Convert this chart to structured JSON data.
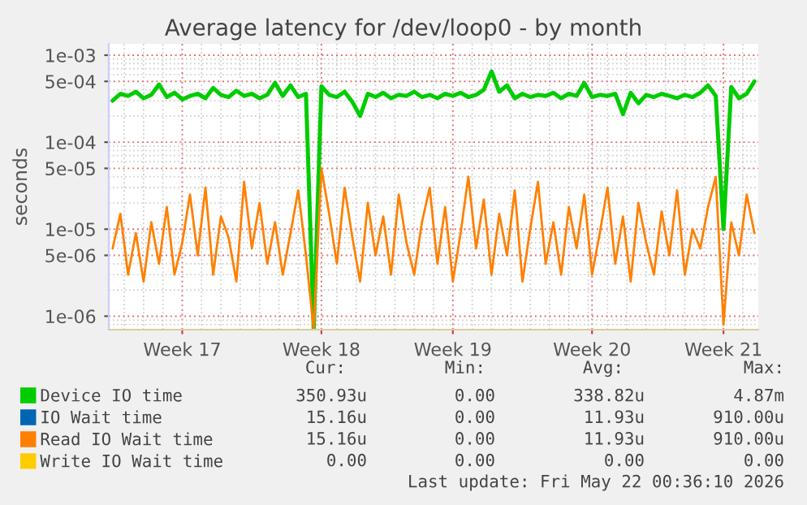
{
  "chart_data": {
    "type": "line",
    "title": "Average latency for /dev/loop0 - by month",
    "ylabel": "seconds",
    "log": "y",
    "grid": true,
    "legend": "bottom",
    "marker": "none",
    "line_style": "solid",
    "categories": [
      null,
      null,
      null,
      null,
      null,
      null,
      null,
      null,
      null,
      "Week 17",
      null,
      null,
      null,
      null,
      null,
      null,
      null,
      null,
      null,
      null,
      null,
      null,
      null,
      null,
      null,
      null,
      null,
      "Week 18",
      null,
      null,
      null,
      null,
      null,
      null,
      null,
      null,
      null,
      null,
      null,
      null,
      null,
      null,
      null,
      null,
      "Week 19",
      null,
      null,
      null,
      null,
      null,
      null,
      null,
      null,
      null,
      null,
      null,
      null,
      null,
      null,
      null,
      null,
      null,
      "Week 20",
      null,
      null,
      null,
      null,
      null,
      null,
      null,
      null,
      null,
      null,
      null,
      null,
      null,
      null,
      null,
      null,
      "Week 21",
      null,
      null,
      null,
      null
    ],
    "ylim": [
      7e-07,
      0.00135
    ],
    "yticks": [
      {
        "value": 1e-06,
        "label": "1e-06"
      },
      {
        "value": 5e-06,
        "label": "5e-06"
      },
      {
        "value": 1e-05,
        "label": "1e-05"
      },
      {
        "value": 5e-05,
        "label": "5e-05"
      },
      {
        "value": 0.0001,
        "label": "1e-04"
      },
      {
        "value": 0.0005,
        "label": "5e-04"
      },
      {
        "value": 0.001,
        "label": "1e-03"
      }
    ],
    "series": [
      {
        "name": "Device IO time",
        "color": "#00cc00",
        "values": [
          0.0003,
          0.00036,
          0.00034,
          0.00038,
          0.00032,
          0.00035,
          0.00046,
          0.00033,
          0.00037,
          0.00031,
          0.00034,
          0.00036,
          0.00032,
          0.00042,
          0.00035,
          0.00033,
          0.00039,
          0.00034,
          0.00036,
          0.00032,
          0.00035,
          0.00048,
          0.00034,
          0.00045,
          0.00033,
          0.00036,
          7e-07,
          0.00044,
          0.00035,
          0.00033,
          0.00038,
          0.00029,
          0.0002,
          0.00036,
          0.00033,
          0.00037,
          0.00032,
          0.00035,
          0.00034,
          0.00038,
          0.00033,
          0.00035,
          0.00032,
          0.00036,
          0.00034,
          0.00037,
          0.00033,
          0.00035,
          0.0004,
          0.00065,
          0.00038,
          0.00045,
          0.00032,
          0.00036,
          0.00033,
          0.00035,
          0.00034,
          0.00037,
          0.00032,
          0.00036,
          0.00034,
          0.00048,
          0.00033,
          0.00035,
          0.00034,
          0.00036,
          0.00021,
          0.00037,
          0.00028,
          0.00035,
          0.00033,
          0.00036,
          0.00034,
          0.00032,
          0.00035,
          0.00033,
          0.00037,
          0.00045,
          0.00034,
          1e-05,
          0.00043,
          0.00032,
          0.00036,
          0.0005
        ]
      },
      {
        "name": "IO Wait time",
        "color": "#0066b3",
        "values": [
          null,
          null,
          null,
          null,
          null,
          null,
          null,
          null,
          null,
          null,
          null,
          null,
          null,
          null,
          null,
          null,
          null,
          null,
          null,
          null,
          null,
          null,
          null,
          null,
          null,
          null,
          null,
          null,
          null,
          null,
          null,
          null,
          null,
          null,
          null,
          null,
          null,
          null,
          null,
          null,
          null,
          null,
          null,
          null,
          null,
          null,
          null,
          null,
          null,
          null,
          null,
          null,
          null,
          null,
          null,
          null,
          null,
          null,
          null,
          null,
          null,
          null,
          null,
          null,
          null,
          null,
          null,
          null,
          null,
          null,
          null,
          null,
          null,
          null,
          null,
          null,
          null,
          null,
          null,
          null,
          null,
          null,
          null,
          null
        ]
      },
      {
        "name": "Read IO Wait time",
        "color": "#ff8000",
        "values": [
          6e-06,
          1.5e-05,
          3e-06,
          9e-06,
          2.5e-06,
          1.2e-05,
          4e-06,
          1.8e-05,
          3e-06,
          7e-06,
          2.5e-05,
          5e-06,
          3e-05,
          3e-06,
          1.4e-05,
          8e-06,
          2.5e-06,
          3.5e-05,
          6e-06,
          2e-05,
          4e-06,
          1.2e-05,
          3e-06,
          9e-06,
          2.8e-05,
          5e-06,
          7e-07,
          5e-05,
          1.5e-05,
          4e-06,
          3e-05,
          8e-06,
          2.5e-06,
          2e-05,
          5e-06,
          1.4e-05,
          3e-06,
          2.5e-05,
          7e-06,
          3e-06,
          1.2e-05,
          3e-05,
          4e-06,
          1.8e-05,
          2.5e-06,
          9e-06,
          4e-05,
          6e-06,
          2.2e-05,
          3e-06,
          1.5e-05,
          5e-06,
          2.8e-05,
          2.5e-06,
          1e-05,
          3.5e-05,
          4e-06,
          1.2e-05,
          3e-06,
          1.8e-05,
          6e-06,
          2.5e-05,
          3e-06,
          9e-06,
          3e-05,
          4e-06,
          1.4e-05,
          2.5e-06,
          2e-05,
          7e-06,
          3e-06,
          1.6e-05,
          5e-06,
          2.8e-05,
          3e-06,
          1e-05,
          6e-06,
          1.8e-05,
          4e-05,
          8e-07,
          1.2e-05,
          5e-06,
          2.5e-05,
          9e-06
        ]
      },
      {
        "name": "Write IO Wait time",
        "color": "#ffcc00",
        "values": [
          null,
          null,
          null,
          null,
          null,
          null,
          null,
          null,
          null,
          null,
          null,
          null,
          null,
          null,
          null,
          null,
          null,
          null,
          null,
          null,
          null,
          null,
          null,
          null,
          null,
          null,
          null,
          null,
          null,
          null,
          null,
          null,
          null,
          null,
          null,
          null,
          null,
          null,
          null,
          null,
          null,
          null,
          null,
          null,
          null,
          null,
          null,
          null,
          null,
          null,
          null,
          null,
          null,
          null,
          null,
          null,
          null,
          null,
          null,
          null,
          null,
          null,
          null,
          null,
          null,
          null,
          null,
          null,
          null,
          null,
          null,
          null,
          null,
          null,
          null,
          null,
          null,
          null,
          null,
          null,
          null,
          null,
          null,
          null
        ]
      }
    ],
    "annotations": [
      "Cur:",
      "Min:",
      "Avg:",
      "Max:",
      "350.93u",
      "0.00",
      "338.82u",
      "4.87m",
      "15.16u",
      "0.00",
      "11.93u",
      "910.00u",
      "15.16u",
      "0.00",
      "11.93u",
      "910.00u",
      "0.00",
      "0.00",
      "0.00",
      "0.00",
      "Last update: Fri May 22 00:36:10 2026"
    ]
  }
}
